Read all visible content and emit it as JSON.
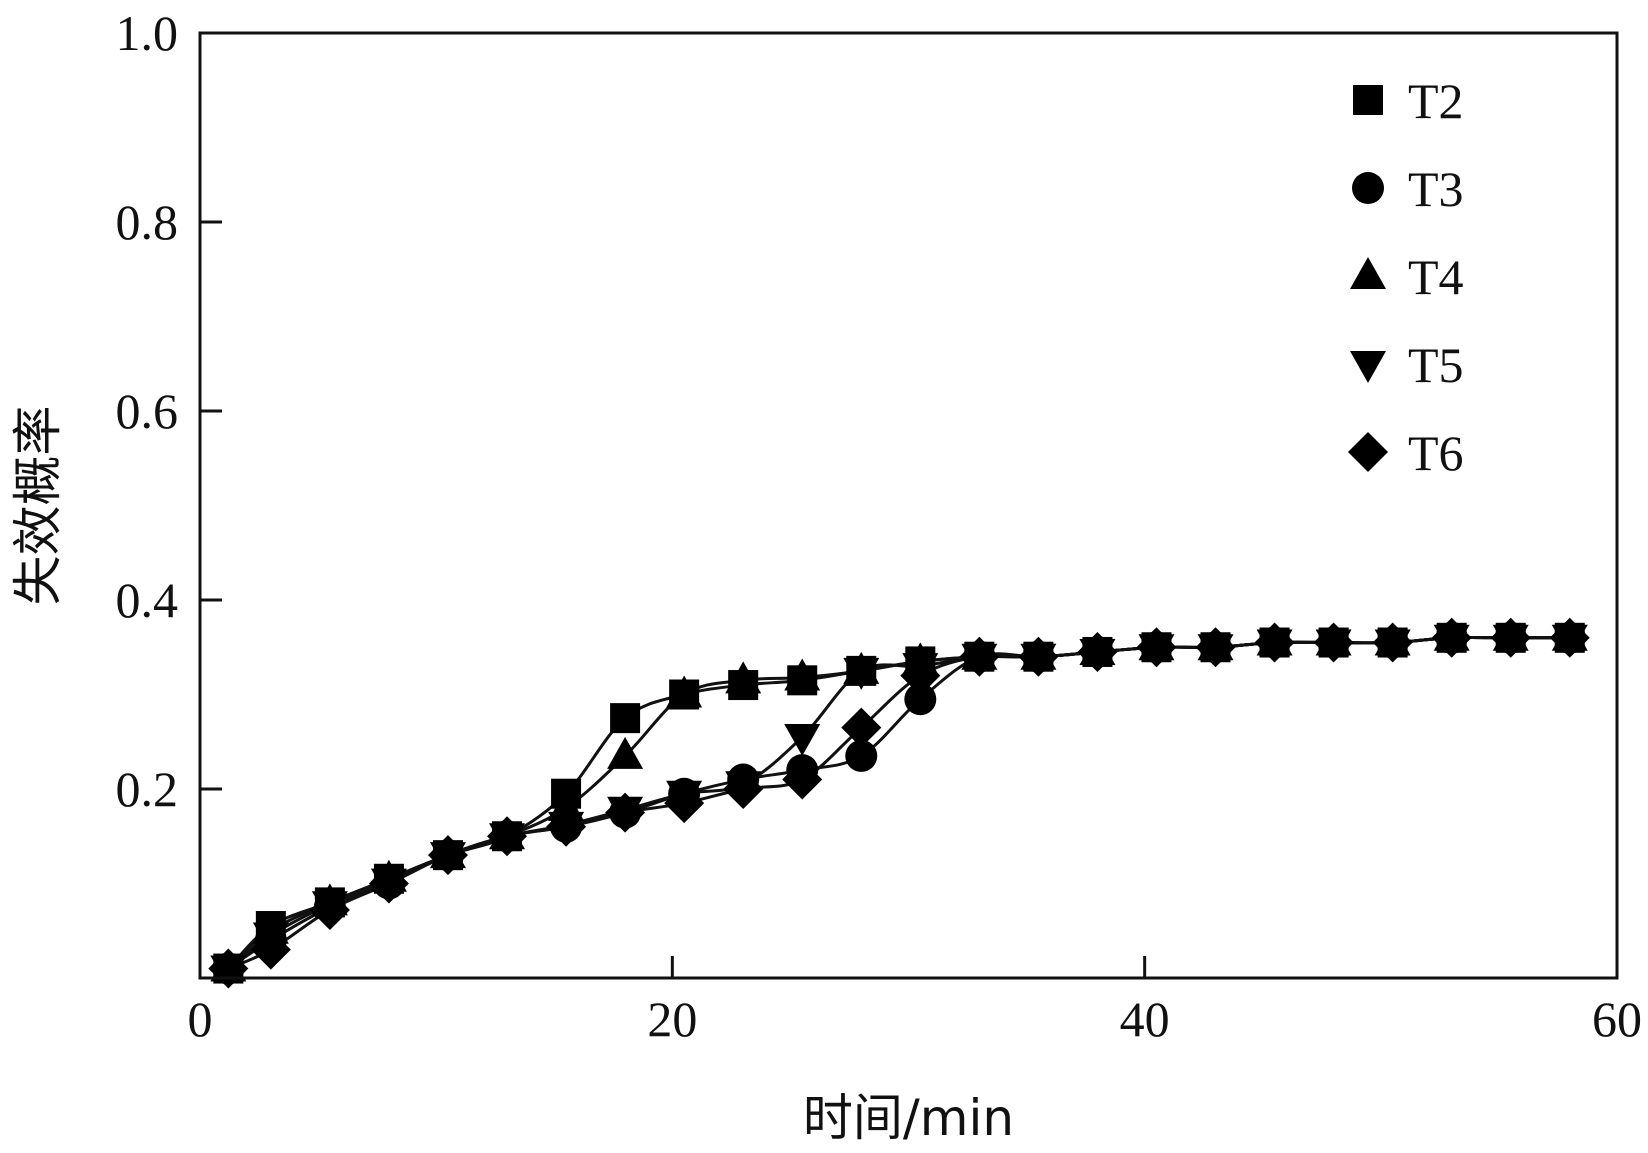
{
  "chart_data": {
    "type": "line",
    "title": "",
    "xlabel": "时间/min",
    "ylabel": "失效概率",
    "xlim": [
      0,
      60
    ],
    "ylim": [
      0,
      1.0
    ],
    "x_ticks": [
      0,
      20,
      40,
      60
    ],
    "y_ticks": [
      0.2,
      0.4,
      0.6,
      0.8,
      1.0
    ],
    "x_tick_labels": [
      "0",
      "20",
      "40",
      "60"
    ],
    "y_tick_labels": [
      "0.2",
      "0.4",
      "0.6",
      "0.8",
      "1.0"
    ],
    "grid": false,
    "legend_position": "top-right",
    "x": [
      1.2,
      3.0,
      5.5,
      8.0,
      10.5,
      13.0,
      15.5,
      18.0,
      20.5,
      23.0,
      25.5,
      28.0,
      30.5,
      33.0,
      35.5,
      38.0,
      40.5,
      43.0,
      45.5,
      48.0,
      50.5,
      53.0,
      55.5,
      58.0
    ],
    "series": [
      {
        "name": "T2",
        "marker": "square",
        "values": [
          0.01,
          0.055,
          0.08,
          0.105,
          0.13,
          0.15,
          0.195,
          0.275,
          0.3,
          0.31,
          0.315,
          0.325,
          0.335,
          0.34,
          0.34,
          0.345,
          0.35,
          0.35,
          0.355,
          0.355,
          0.355,
          0.36,
          0.36,
          0.36
        ]
      },
      {
        "name": "T3",
        "marker": "circle",
        "values": [
          0.01,
          0.04,
          0.075,
          0.1,
          0.13,
          0.15,
          0.16,
          0.175,
          0.195,
          0.21,
          0.22,
          0.235,
          0.295,
          0.34,
          0.34,
          0.345,
          0.35,
          0.35,
          0.355,
          0.355,
          0.355,
          0.36,
          0.36,
          0.36
        ]
      },
      {
        "name": "T4",
        "marker": "triangle-up",
        "values": [
          0.01,
          0.05,
          0.08,
          0.105,
          0.13,
          0.15,
          0.18,
          0.235,
          0.3,
          0.315,
          0.318,
          0.325,
          0.335,
          0.34,
          0.34,
          0.345,
          0.35,
          0.35,
          0.355,
          0.355,
          0.355,
          0.36,
          0.36,
          0.36
        ]
      },
      {
        "name": "T5",
        "marker": "triangle-down",
        "values": [
          0.01,
          0.045,
          0.078,
          0.102,
          0.13,
          0.15,
          0.162,
          0.178,
          0.195,
          0.205,
          0.255,
          0.325,
          0.33,
          0.34,
          0.34,
          0.345,
          0.35,
          0.35,
          0.355,
          0.355,
          0.355,
          0.36,
          0.36,
          0.36
        ]
      },
      {
        "name": "T6",
        "marker": "diamond",
        "values": [
          0.01,
          0.03,
          0.072,
          0.1,
          0.13,
          0.15,
          0.16,
          0.175,
          0.185,
          0.2,
          0.21,
          0.265,
          0.32,
          0.34,
          0.34,
          0.345,
          0.35,
          0.35,
          0.355,
          0.355,
          0.355,
          0.36,
          0.36,
          0.36
        ]
      }
    ]
  }
}
